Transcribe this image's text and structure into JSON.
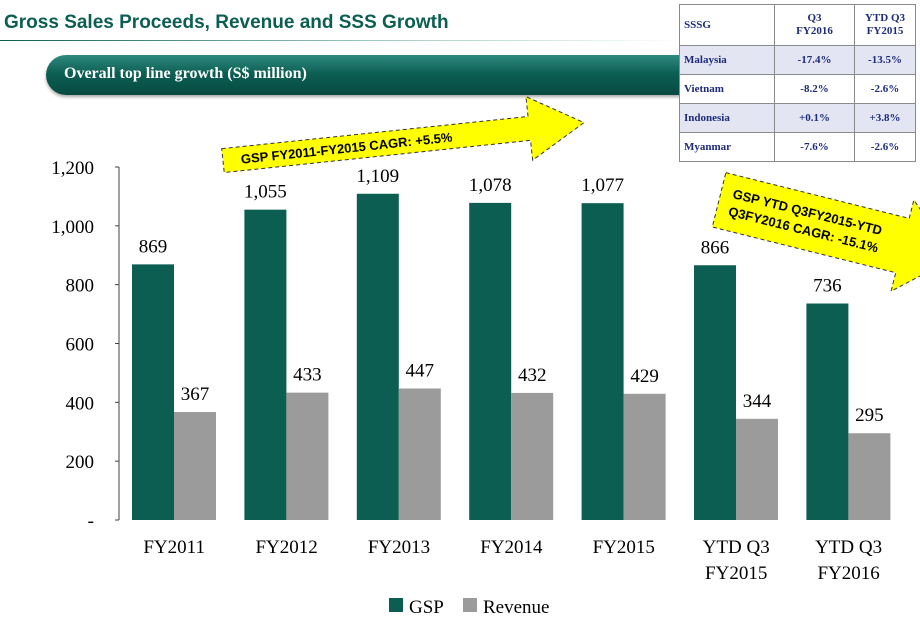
{
  "page_title": "Gross Sales Proceeds, Revenue and SSS Growth",
  "banner": "Overall top line growth (S$ million)",
  "sssg_table": {
    "header": [
      "SSSG",
      "Q3 FY2016",
      "YTD Q3 FY2015"
    ],
    "header_lines": [
      [
        "SSSG"
      ],
      [
        "Q3",
        "FY2016"
      ],
      [
        "YTD Q3",
        "FY2015"
      ]
    ],
    "rows": [
      {
        "country": "Malaysia",
        "q3": "-17.4%",
        "ytd": "-13.5%"
      },
      {
        "country": "Vietnam",
        "q3": "-8.2%",
        "ytd": "-2.6%"
      },
      {
        "country": "Indonesia",
        "q3": "+0.1%",
        "ytd": "+3.8%"
      },
      {
        "country": "Myanmar",
        "q3": "-7.6%",
        "ytd": "-2.6%"
      }
    ]
  },
  "callouts": {
    "cagr_1": "GSP FY2011-FY2015 CAGR: +5.5%",
    "cagr_2_lines": [
      "GSP YTD Q3FY2015-YTD",
      "Q3FY2016 CAGR: -15.1%"
    ]
  },
  "colors": {
    "gsp": "#0c5e52",
    "revenue": "#9b9b9b",
    "arrow_fill": "#ffff00",
    "title": "#0c5e52",
    "table_text": "#1d2b7a"
  },
  "chart_data": {
    "type": "bar",
    "title": "Overall top line growth (S$ million)",
    "categories": [
      "FY2011",
      "FY2012",
      "FY2013",
      "FY2014",
      "FY2015",
      "YTD Q3 FY2015",
      "YTD Q3 FY2016"
    ],
    "category_lines": [
      [
        "FY2011"
      ],
      [
        "FY2012"
      ],
      [
        "FY2013"
      ],
      [
        "FY2014"
      ],
      [
        "FY2015"
      ],
      [
        "YTD Q3",
        "FY2015"
      ],
      [
        "YTD Q3",
        "FY2016"
      ]
    ],
    "series": [
      {
        "name": "GSP",
        "values": [
          869,
          1055,
          1109,
          1078,
          1077,
          866,
          736
        ],
        "labels": [
          "869",
          "1,055",
          "1,109",
          "1,078",
          "1,077",
          "866",
          "736"
        ]
      },
      {
        "name": "Revenue",
        "values": [
          367,
          433,
          447,
          432,
          429,
          344,
          295
        ],
        "labels": [
          "367",
          "433",
          "447",
          "432",
          "429",
          "344",
          "295"
        ]
      }
    ],
    "ylim": [
      0,
      1200
    ],
    "yticks": [
      0,
      200,
      400,
      600,
      800,
      1000,
      1200
    ],
    "ytick_labels": [
      "-",
      "200",
      "400",
      "600",
      "800",
      "1,000",
      "1,200"
    ],
    "xlabel": "",
    "ylabel": "",
    "legend": "bottom-center",
    "grid": false
  }
}
